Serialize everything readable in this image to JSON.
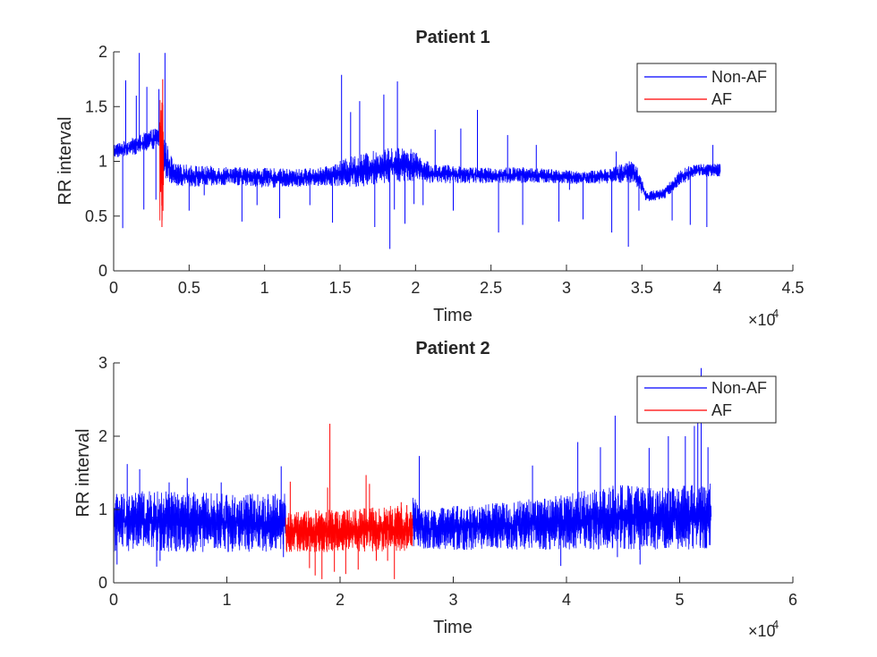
{
  "chart_data": [
    {
      "type": "line",
      "title": "Patient 1",
      "xlabel": "Time",
      "ylabel": "RR interval",
      "xlim": [
        0,
        45000
      ],
      "ylim": [
        0,
        2
      ],
      "x_ticks": [
        0,
        5000,
        10000,
        15000,
        20000,
        25000,
        30000,
        35000,
        40000,
        45000
      ],
      "x_tick_labels": [
        "0",
        "0.5",
        "1",
        "1.5",
        "2",
        "2.5",
        "3",
        "3.5",
        "4",
        "4.5"
      ],
      "y_ticks": [
        0,
        0.5,
        1,
        1.5,
        2
      ],
      "y_tick_labels": [
        "0",
        "0.5",
        "1",
        "1.5",
        "2"
      ],
      "x_multiplier": {
        "base": "×10",
        "exponent": "4"
      },
      "grid": false,
      "legend_position": "top-right",
      "series": [
        {
          "name": "Non-AF",
          "color": "#0000ff",
          "segments": [
            {
              "x_range": [
                0,
                3000
              ],
              "envelope": [
                [
                  0,
                  1.03,
                  1.16
                ],
                [
                  1000,
                  1.05,
                  1.2
                ],
                [
                  2000,
                  1.08,
                  1.26
                ],
                [
                  3000,
                  1.12,
                  1.32
                ]
              ]
            },
            {
              "x_range": [
                3300,
                40200
              ],
              "envelope": [
                [
                  3300,
                  0.85,
                  1.25
                ],
                [
                  4000,
                  0.78,
                  0.98
                ],
                [
                  6000,
                  0.76,
                  0.96
                ],
                [
                  8000,
                  0.78,
                  0.95
                ],
                [
                  10000,
                  0.76,
                  0.94
                ],
                [
                  12000,
                  0.76,
                  0.93
                ],
                [
                  14000,
                  0.78,
                  0.95
                ],
                [
                  16000,
                  0.76,
                  1.06
                ],
                [
                  18000,
                  0.8,
                  1.12
                ],
                [
                  19500,
                  0.82,
                  1.14
                ],
                [
                  21000,
                  0.8,
                  0.98
                ],
                [
                  23000,
                  0.8,
                  0.96
                ],
                [
                  25000,
                  0.8,
                  0.94
                ],
                [
                  27000,
                  0.8,
                  0.95
                ],
                [
                  29000,
                  0.8,
                  0.93
                ],
                [
                  31000,
                  0.79,
                  0.91
                ],
                [
                  33000,
                  0.8,
                  0.94
                ],
                [
                  34500,
                  0.8,
                  1.03
                ],
                [
                  35300,
                  0.63,
                  0.72
                ],
                [
                  36500,
                  0.66,
                  0.76
                ],
                [
                  37500,
                  0.78,
                  0.92
                ],
                [
                  38500,
                  0.86,
                  0.98
                ],
                [
                  40200,
                  0.86,
                  0.98
                ]
              ]
            }
          ],
          "spikes": [
            [
              600,
              0.39
            ],
            [
              800,
              1.74
            ],
            [
              1500,
              1.6
            ],
            [
              1700,
              1.99
            ],
            [
              2000,
              0.56
            ],
            [
              2200,
              1.68
            ],
            [
              2800,
              0.65
            ],
            [
              3000,
              1.66
            ],
            [
              3400,
              1.99
            ],
            [
              5000,
              0.55
            ],
            [
              6000,
              0.69
            ],
            [
              8500,
              0.45
            ],
            [
              9500,
              0.6
            ],
            [
              11000,
              0.48
            ],
            [
              13000,
              0.6
            ],
            [
              14500,
              0.44
            ],
            [
              15100,
              1.79
            ],
            [
              15700,
              1.45
            ],
            [
              16300,
              1.55
            ],
            [
              17300,
              0.4
            ],
            [
              17900,
              1.61
            ],
            [
              18300,
              0.2
            ],
            [
              18600,
              0.56
            ],
            [
              18800,
              1.73
            ],
            [
              19300,
              0.43
            ],
            [
              19900,
              0.61
            ],
            [
              20500,
              0.6
            ],
            [
              21300,
              1.29
            ],
            [
              22500,
              0.55
            ],
            [
              23000,
              1.3
            ],
            [
              24100,
              1.47
            ],
            [
              25500,
              0.35
            ],
            [
              26100,
              1.24
            ],
            [
              27100,
              0.42
            ],
            [
              28000,
              1.15
            ],
            [
              29500,
              0.45
            ],
            [
              30200,
              0.74
            ],
            [
              31100,
              0.47
            ],
            [
              33000,
              0.35
            ],
            [
              33300,
              1.09
            ],
            [
              34100,
              0.22
            ],
            [
              34800,
              0.55
            ],
            [
              35500,
              0.65
            ],
            [
              37000,
              0.46
            ],
            [
              38200,
              0.42
            ],
            [
              39300,
              0.4
            ],
            [
              39700,
              1.15
            ],
            [
              40000,
              0.87
            ]
          ]
        },
        {
          "name": "AF",
          "color": "#ff0000",
          "segments": [
            {
              "x_range": [
                3050,
                3300
              ],
              "envelope": [
                [
                  3050,
                  0.45,
                  1.5
                ],
                [
                  3150,
                  0.42,
                  1.75
                ],
                [
                  3300,
                  0.5,
                  1.55
                ]
              ]
            }
          ],
          "spikes": [
            [
              3200,
              0.4
            ],
            [
              3250,
              1.75
            ]
          ]
        }
      ]
    },
    {
      "type": "line",
      "title": "Patient 2",
      "xlabel": "Time",
      "ylabel": "RR interval",
      "xlim": [
        0,
        60000
      ],
      "ylim": [
        0,
        3
      ],
      "x_ticks": [
        0,
        10000,
        20000,
        30000,
        40000,
        50000,
        60000
      ],
      "x_tick_labels": [
        "0",
        "1",
        "2",
        "3",
        "4",
        "5",
        "6"
      ],
      "y_ticks": [
        0,
        1,
        2,
        3
      ],
      "y_tick_labels": [
        "0",
        "1",
        "2",
        "3"
      ],
      "x_multiplier": {
        "base": "×10",
        "exponent": "4"
      },
      "grid": false,
      "legend_position": "top-right",
      "series": [
        {
          "name": "Non-AF",
          "color": "#0000ff",
          "segments": [
            {
              "x_range": [
                0,
                15200
              ],
              "envelope": [
                [
                  0,
                  0.42,
                  1.25
                ],
                [
                  5000,
                  0.42,
                  1.25
                ],
                [
                  10000,
                  0.42,
                  1.22
                ],
                [
                  15200,
                  0.42,
                  1.22
                ]
              ]
            },
            {
              "x_range": [
                26400,
                52800
              ],
              "envelope": [
                [
                  26400,
                  0.45,
                  1.3
                ],
                [
                  27500,
                  0.45,
                  1.0
                ],
                [
                  30000,
                  0.45,
                  1.05
                ],
                [
                  35000,
                  0.45,
                  1.1
                ],
                [
                  40000,
                  0.45,
                  1.22
                ],
                [
                  45000,
                  0.45,
                  1.35
                ],
                [
                  48000,
                  0.45,
                  1.3
                ],
                [
                  50000,
                  0.45,
                  1.32
                ],
                [
                  52800,
                  0.45,
                  1.36
                ]
              ]
            }
          ],
          "spikes": [
            [
              300,
              0.25
            ],
            [
              1200,
              1.62
            ],
            [
              2300,
              1.55
            ],
            [
              3800,
              0.22
            ],
            [
              4100,
              0.3
            ],
            [
              4900,
              1.37
            ],
            [
              6500,
              1.43
            ],
            [
              9500,
              1.37
            ],
            [
              14800,
              1.59
            ],
            [
              15000,
              0.35
            ],
            [
              27000,
              1.73
            ],
            [
              31000,
              0.6
            ],
            [
              37000,
              1.6
            ],
            [
              39500,
              0.23
            ],
            [
              41000,
              1.92
            ],
            [
              43000,
              1.85
            ],
            [
              44300,
              2.28
            ],
            [
              44500,
              0.35
            ],
            [
              46500,
              0.25
            ],
            [
              47300,
              1.84
            ],
            [
              49000,
              2.0
            ],
            [
              50500,
              2.0
            ],
            [
              51300,
              2.14
            ],
            [
              51600,
              2.3
            ],
            [
              51900,
              2.93
            ],
            [
              52100,
              1.3
            ],
            [
              52500,
              1.85
            ]
          ]
        },
        {
          "name": "AF",
          "color": "#ff0000",
          "segments": [
            {
              "x_range": [
                15200,
                26400
              ],
              "envelope": [
                [
                  15200,
                  0.42,
                  0.95
                ],
                [
                  18000,
                  0.42,
                  1.0
                ],
                [
                  21000,
                  0.42,
                  1.0
                ],
                [
                  24000,
                  0.42,
                  1.05
                ],
                [
                  26400,
                  0.42,
                  1.05
                ]
              ]
            }
          ],
          "spikes": [
            [
              15600,
              1.38
            ],
            [
              17300,
              0.2
            ],
            [
              17800,
              0.1
            ],
            [
              18400,
              0.05
            ],
            [
              18900,
              1.3
            ],
            [
              19100,
              2.17
            ],
            [
              19500,
              0.15
            ],
            [
              20500,
              0.12
            ],
            [
              21600,
              0.18
            ],
            [
              22300,
              1.47
            ],
            [
              22600,
              1.35
            ],
            [
              23200,
              0.3
            ],
            [
              24200,
              0.3
            ],
            [
              24800,
              0.05
            ],
            [
              25400,
              1.1
            ],
            [
              25900,
              1.06
            ]
          ]
        }
      ]
    }
  ]
}
